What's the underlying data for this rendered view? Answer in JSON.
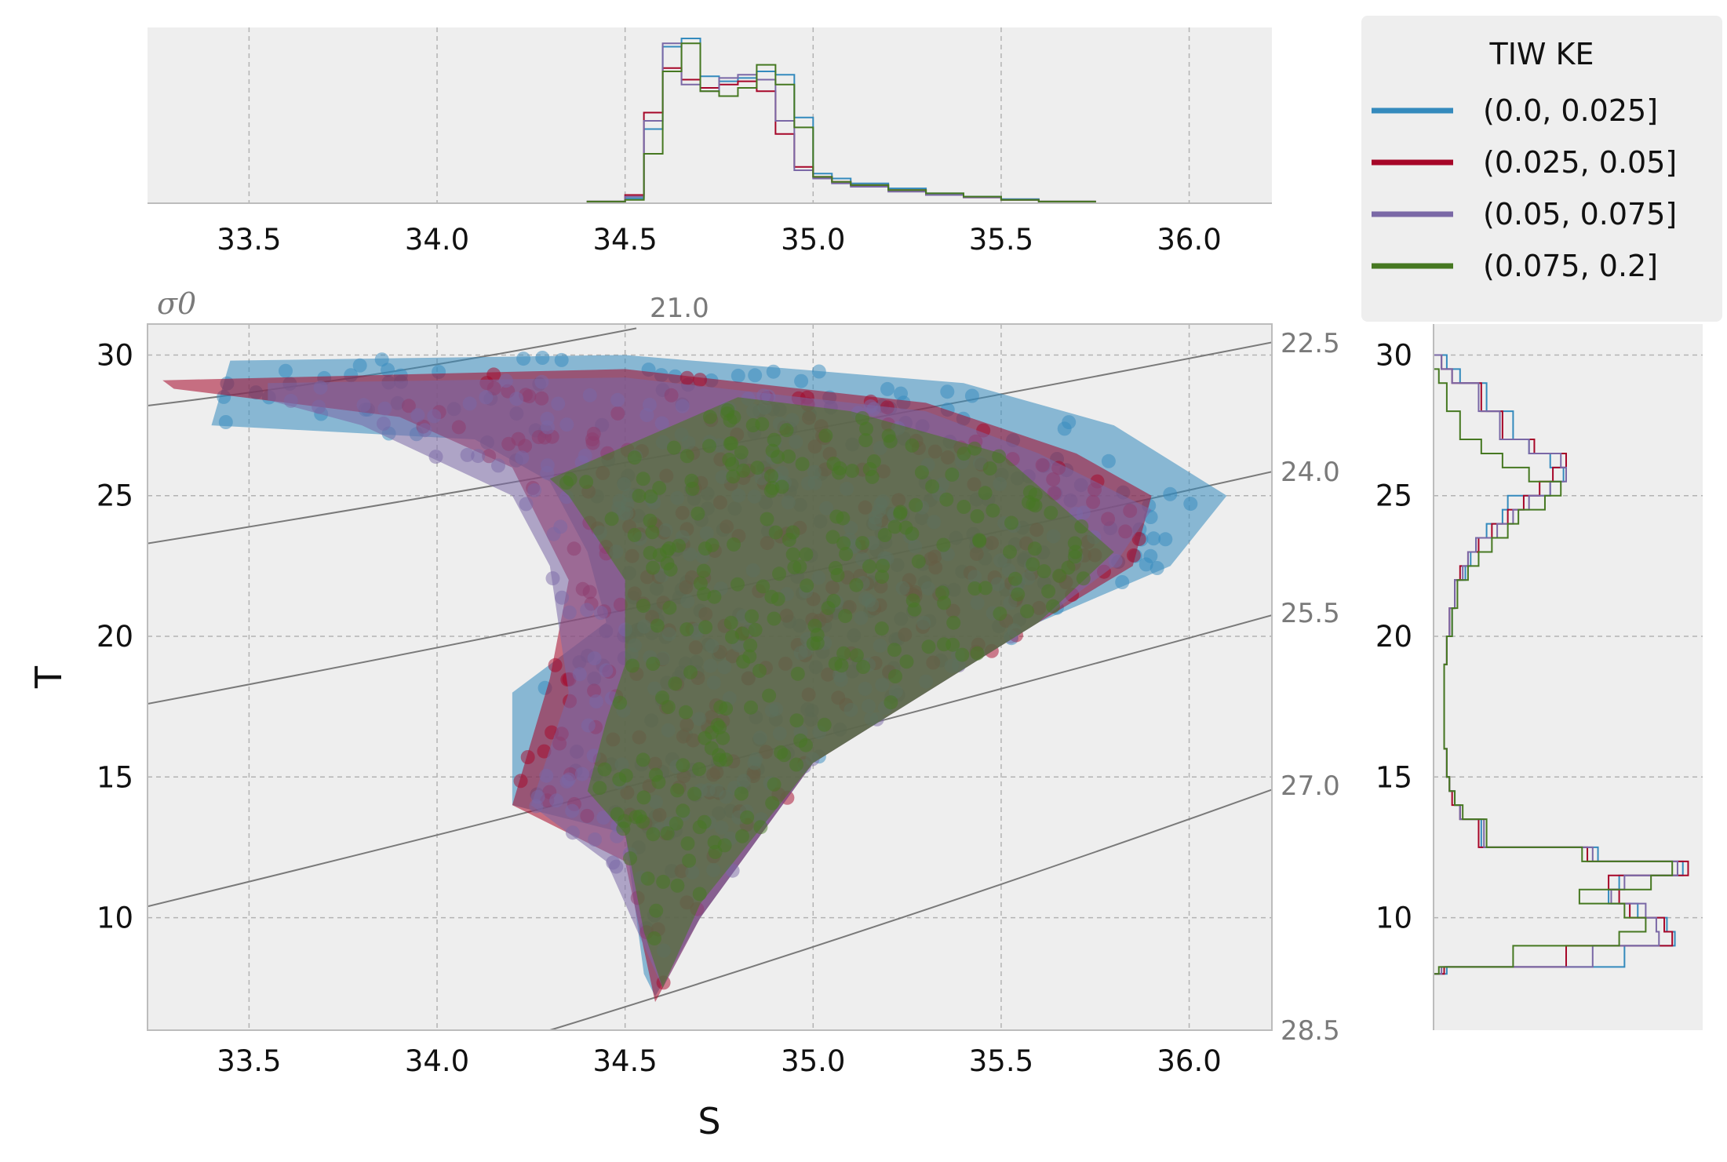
{
  "chart_data": [
    {
      "type": "scatter",
      "panel": "main",
      "xlabel": "S",
      "ylabel": "T",
      "xlim": [
        33.23,
        36.22
      ],
      "ylim": [
        6.0,
        31.1
      ],
      "xticks": [
        "33.5",
        "34.0",
        "34.5",
        "35.0",
        "35.5",
        "36.0"
      ],
      "yticks": [
        "10",
        "15",
        "20",
        "25",
        "30"
      ],
      "grid": true,
      "density_contours": {
        "label": "σ0",
        "levels": [
          {
            "level": "21.0",
            "S": [
              33.23,
              34.53
            ],
            "T": [
              28.2,
              30.95
            ]
          },
          {
            "level": "22.5",
            "S": [
              33.23,
              36.22
            ],
            "T": [
              23.3,
              30.45
            ]
          },
          {
            "level": "24.0",
            "S": [
              33.23,
              36.22
            ],
            "T": [
              17.6,
              25.85
            ]
          },
          {
            "level": "25.5",
            "S": [
              33.23,
              36.22
            ],
            "T": [
              10.4,
              20.75
            ]
          },
          {
            "level": "27.0",
            "S": [
              34.3,
              36.22
            ],
            "T": [
              6.0,
              14.55
            ]
          },
          {
            "level": "28.5",
            "S": [],
            "T": []
          }
        ]
      },
      "series": [
        {
          "name": "(0.0, 0.025]",
          "color": "#348abd",
          "envelope": [
            [
              33.45,
              29.8
            ],
            [
              34.5,
              30.0
            ],
            [
              35.4,
              29.0
            ],
            [
              35.8,
              27.5
            ],
            [
              36.1,
              25.0
            ],
            [
              35.95,
              22.5
            ],
            [
              35.6,
              20.5
            ],
            [
              35.0,
              15.5
            ],
            [
              34.7,
              10.0
            ],
            [
              34.58,
              7.2
            ],
            [
              34.55,
              8.0
            ],
            [
              34.5,
              13.0
            ],
            [
              34.2,
              14.0
            ],
            [
              34.2,
              18.0
            ],
            [
              34.45,
              20.5
            ],
            [
              34.4,
              23.0
            ],
            [
              34.3,
              25.5
            ],
            [
              34.1,
              27.0
            ],
            [
              33.4,
              27.5
            ]
          ]
        },
        {
          "name": "(0.025, 0.05]",
          "color": "#a60628",
          "envelope": [
            [
              33.27,
              29.1
            ],
            [
              34.5,
              29.5
            ],
            [
              35.3,
              28.3
            ],
            [
              35.7,
              26.5
            ],
            [
              35.9,
              25.0
            ],
            [
              35.85,
              22.5
            ],
            [
              35.6,
              20.5
            ],
            [
              35.0,
              15.5
            ],
            [
              34.7,
              10.0
            ],
            [
              34.58,
              7.0
            ],
            [
              34.5,
              12.0
            ],
            [
              34.2,
              14.0
            ],
            [
              34.3,
              18.5
            ],
            [
              34.35,
              22.0
            ],
            [
              34.2,
              26.0
            ],
            [
              33.9,
              27.8
            ],
            [
              33.3,
              28.8
            ]
          ]
        },
        {
          "name": "(0.05, 0.075]",
          "color": "#7a68a6",
          "envelope": [
            [
              33.55,
              29.0
            ],
            [
              34.5,
              29.2
            ],
            [
              35.3,
              28.0
            ],
            [
              35.6,
              26.5
            ],
            [
              35.9,
              24.5
            ],
            [
              35.8,
              22.5
            ],
            [
              35.6,
              20.5
            ],
            [
              35.0,
              15.5
            ],
            [
              34.7,
              10.0
            ],
            [
              34.6,
              7.5
            ],
            [
              34.45,
              12.0
            ],
            [
              34.25,
              14.0
            ],
            [
              34.35,
              18.0
            ],
            [
              34.3,
              22.5
            ],
            [
              34.2,
              25.0
            ],
            [
              33.8,
              27.5
            ],
            [
              33.55,
              28.4
            ]
          ]
        },
        {
          "name": "(0.075, 0.2]",
          "color": "#467821",
          "envelope": [
            [
              34.3,
              25.6
            ],
            [
              34.8,
              28.5
            ],
            [
              35.1,
              28.0
            ],
            [
              35.5,
              26.5
            ],
            [
              35.8,
              23.0
            ],
            [
              35.6,
              20.5
            ],
            [
              35.0,
              15.5
            ],
            [
              34.7,
              10.5
            ],
            [
              34.6,
              7.5
            ],
            [
              34.55,
              9.5
            ],
            [
              34.5,
              13.0
            ],
            [
              34.4,
              14.5
            ],
            [
              34.45,
              17.0
            ],
            [
              34.5,
              19.0
            ],
            [
              34.5,
              22.0
            ],
            [
              34.35,
              25.0
            ]
          ]
        }
      ]
    },
    {
      "type": "histogram",
      "panel": "top",
      "xlim": [
        33.23,
        36.22
      ],
      "xticks": [
        "33.5",
        "34.0",
        "34.5",
        "35.0",
        "35.5",
        "36.0"
      ],
      "grid": true,
      "bins": [
        34.4,
        34.5,
        34.55,
        34.6,
        34.65,
        34.7,
        34.75,
        34.8,
        34.85,
        34.9,
        34.95,
        35.0,
        35.05,
        35.1,
        35.2,
        35.3,
        35.4,
        35.5,
        35.6,
        35.75
      ],
      "series": [
        {
          "name": "(0.0, 0.025]",
          "color": "#348abd",
          "counts": [
            0.01,
            0.03,
            0.45,
            0.95,
            1.0,
            0.77,
            0.74,
            0.76,
            0.8,
            0.78,
            0.52,
            0.18,
            0.15,
            0.12,
            0.09,
            0.06,
            0.04,
            0.025,
            0.01
          ]
        },
        {
          "name": "(0.025, 0.05]",
          "color": "#a60628",
          "counts": [
            0.01,
            0.05,
            0.55,
            0.82,
            0.75,
            0.7,
            0.72,
            0.74,
            0.68,
            0.42,
            0.22,
            0.16,
            0.13,
            0.11,
            0.08,
            0.05,
            0.035,
            0.02,
            0.01
          ]
        },
        {
          "name": "(0.05, 0.075]",
          "color": "#7a68a6",
          "counts": [
            0.01,
            0.04,
            0.5,
            0.97,
            0.72,
            0.68,
            0.76,
            0.78,
            0.75,
            0.5,
            0.2,
            0.15,
            0.12,
            0.1,
            0.07,
            0.05,
            0.035,
            0.02,
            0.01
          ]
        },
        {
          "name": "(0.075, 0.2]",
          "color": "#467821",
          "counts": [
            0.01,
            0.02,
            0.3,
            0.8,
            0.97,
            0.68,
            0.65,
            0.7,
            0.84,
            0.72,
            0.46,
            0.16,
            0.13,
            0.11,
            0.08,
            0.06,
            0.04,
            0.02,
            0.01
          ]
        }
      ]
    },
    {
      "type": "histogram",
      "panel": "right",
      "orientation": "horizontal",
      "ylim": [
        6.0,
        31.1
      ],
      "yticks": [
        "10",
        "15",
        "20",
        "25",
        "30"
      ],
      "grid": true,
      "bins": [
        8.0,
        8.25,
        9.0,
        9.5,
        10.0,
        10.5,
        11.0,
        11.5,
        12.0,
        12.5,
        13.5,
        14.0,
        14.5,
        15.0,
        16.0,
        17.0,
        18.0,
        19.0,
        20.0,
        21.0,
        22.0,
        22.5,
        23.0,
        23.5,
        24.0,
        24.5,
        25.0,
        25.5,
        26.0,
        26.5,
        27.0,
        28.0,
        29.0,
        29.5,
        30.0
      ],
      "series": [
        {
          "name": "(0.0, 0.025]",
          "color": "#348abd",
          "counts": [
            0.05,
            0.72,
            0.91,
            0.88,
            0.77,
            0.66,
            0.7,
            0.94,
            0.62,
            0.18,
            0.1,
            0.08,
            0.06,
            0.05,
            0.04,
            0.04,
            0.04,
            0.05,
            0.07,
            0.08,
            0.12,
            0.14,
            0.16,
            0.2,
            0.26,
            0.28,
            0.44,
            0.49,
            0.44,
            0.36,
            0.3,
            0.2,
            0.1,
            0.05
          ]
        },
        {
          "name": "(0.025, 0.05]",
          "color": "#a60628",
          "counts": [
            0.04,
            0.5,
            0.9,
            0.87,
            0.74,
            0.7,
            0.66,
            0.96,
            0.58,
            0.17,
            0.1,
            0.07,
            0.06,
            0.05,
            0.04,
            0.04,
            0.04,
            0.05,
            0.06,
            0.08,
            0.1,
            0.13,
            0.17,
            0.22,
            0.28,
            0.34,
            0.4,
            0.45,
            0.5,
            0.38,
            0.26,
            0.18,
            0.07,
            0.03
          ]
        },
        {
          "name": "(0.05, 0.075]",
          "color": "#7a68a6",
          "counts": [
            0.03,
            0.6,
            0.85,
            0.84,
            0.8,
            0.67,
            0.72,
            0.92,
            0.6,
            0.19,
            0.1,
            0.08,
            0.06,
            0.05,
            0.04,
            0.04,
            0.04,
            0.05,
            0.06,
            0.08,
            0.11,
            0.13,
            0.16,
            0.24,
            0.3,
            0.36,
            0.44,
            0.5,
            0.48,
            0.36,
            0.25,
            0.17,
            0.07,
            0.03
          ]
        },
        {
          "name": "(0.075, 0.2]",
          "color": "#467821",
          "counts": [
            0.02,
            0.3,
            0.7,
            0.8,
            0.72,
            0.55,
            0.82,
            0.9,
            0.56,
            0.2,
            0.11,
            0.08,
            0.06,
            0.05,
            0.04,
            0.04,
            0.04,
            0.05,
            0.07,
            0.09,
            0.13,
            0.17,
            0.22,
            0.28,
            0.32,
            0.42,
            0.48,
            0.36,
            0.26,
            0.18,
            0.1,
            0.05,
            0.02,
            0.0
          ]
        }
      ]
    }
  ],
  "legend": {
    "title": "TIW KE",
    "placement": "top-right",
    "items": [
      {
        "label": "(0.0, 0.025]",
        "color": "#348abd"
      },
      {
        "label": "(0.025, 0.05]",
        "color": "#a60628"
      },
      {
        "label": "(0.05, 0.075]",
        "color": "#7a68a6"
      },
      {
        "label": "(0.075, 0.2]",
        "color": "#467821"
      }
    ]
  },
  "style": {
    "panel_background": "#eeeeee",
    "grid_color": "#b3b3b3",
    "spine_color": "#bcbcbc",
    "contour_color": "#7a7a7a"
  }
}
